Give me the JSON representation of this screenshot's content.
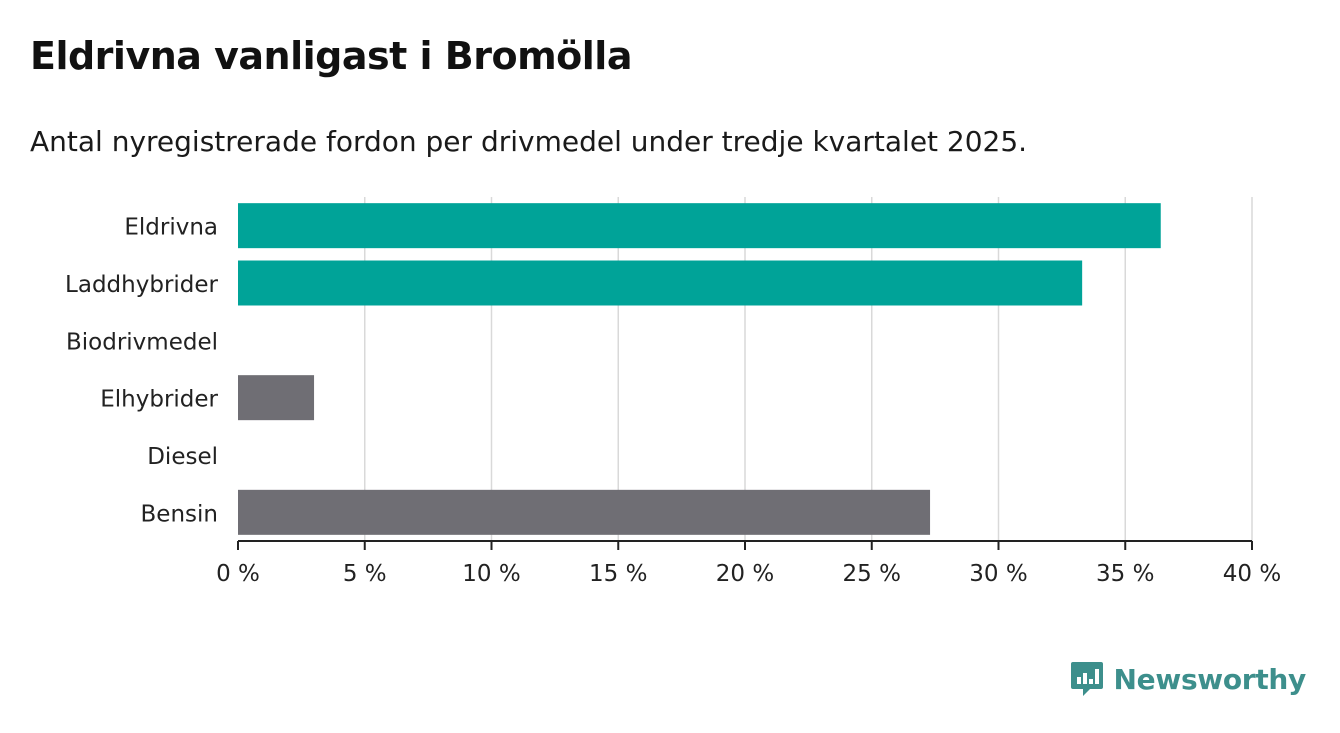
{
  "title": "Eldrivna vanligast i Bromölla",
  "subtitle": "Antal nyregistrerade fordon per drivmedel under tredje kvartalet 2025.",
  "brand": "Newsworthy",
  "colors": {
    "highlight": "#00a398",
    "neutral": "#6f6e74",
    "grid": "#d9d9d9",
    "axis": "#222222",
    "brand": "#3d8f8c"
  },
  "chart_data": {
    "type": "bar",
    "orientation": "horizontal",
    "categories": [
      "Eldrivna",
      "Laddhybrider",
      "Biodrivmedel",
      "Elhybrider",
      "Diesel",
      "Bensin"
    ],
    "values": [
      36.4,
      33.3,
      0,
      3.0,
      0,
      27.3
    ],
    "highlighted": [
      true,
      true,
      false,
      false,
      false,
      false
    ],
    "xlim": [
      0,
      40
    ],
    "xticks": [
      0,
      5,
      10,
      15,
      20,
      25,
      30,
      35,
      40
    ],
    "xtick_labels": [
      "0 %",
      "5 %",
      "10 %",
      "15 %",
      "20 %",
      "25 %",
      "30 %",
      "35 %",
      "40 %"
    ],
    "xlabel": "",
    "ylabel": "",
    "grid": true,
    "legend": "none"
  }
}
